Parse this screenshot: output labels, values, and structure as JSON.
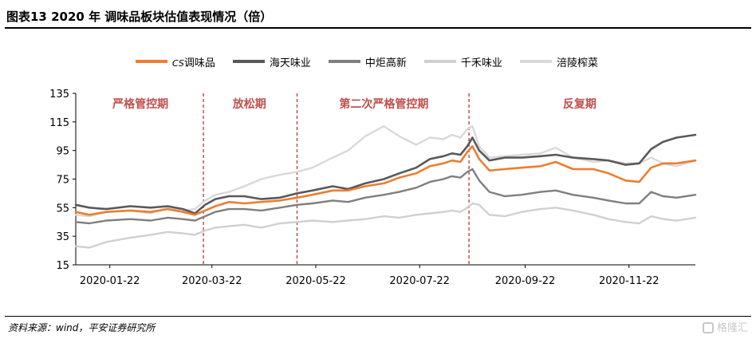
{
  "header": {
    "title": "图表13    2020 年 调味品板块估值表现情况（倍）"
  },
  "footer": {
    "source": "资料来源：wind，平安证券研究所",
    "watermark": "格隆汇"
  },
  "colors": {
    "axis": "#000000",
    "divider": "#b9483f",
    "period_label": "#c0504d"
  },
  "chart_data": {
    "type": "line",
    "title": "",
    "xlabel": "",
    "ylabel": "",
    "ylim": [
      15,
      135
    ],
    "yticks": [
      15,
      35,
      55,
      75,
      95,
      115,
      135
    ],
    "xlim": [
      "2020-01-02",
      "2020-12-31"
    ],
    "xticks": [
      "2020-01-22",
      "2020-03-22",
      "2020-05-22",
      "2020-07-22",
      "2020-09-22",
      "2020-11-22"
    ],
    "grid": false,
    "legend_position": "top-center",
    "dividers": [
      "2020-03-17",
      "2020-05-11",
      "2020-08-20"
    ],
    "periods": [
      {
        "label": "严格管控期",
        "x": "2020-02-09"
      },
      {
        "label": "放松期",
        "x": "2020-04-13"
      },
      {
        "label": "第二次严格管控期",
        "x": "2020-07-01"
      },
      {
        "label": "反复期",
        "x": "2020-10-24"
      }
    ],
    "series": [
      {
        "name": "调味品",
        "legend_prefix": "CS",
        "color": "#ed7d31",
        "width": 2.6,
        "x": [
          "2020-01-02",
          "2020-01-10",
          "2020-01-20",
          "2020-02-03",
          "2020-02-15",
          "2020-02-25",
          "2020-03-05",
          "2020-03-12",
          "2020-03-18",
          "2020-03-24",
          "2020-04-01",
          "2020-04-10",
          "2020-04-20",
          "2020-05-01",
          "2020-05-11",
          "2020-05-20",
          "2020-06-01",
          "2020-06-10",
          "2020-06-20",
          "2020-07-01",
          "2020-07-10",
          "2020-07-20",
          "2020-07-28",
          "2020-08-05",
          "2020-08-10",
          "2020-08-15",
          "2020-08-19",
          "2020-08-22",
          "2020-08-26",
          "2020-09-01",
          "2020-09-10",
          "2020-09-20",
          "2020-10-01",
          "2020-10-10",
          "2020-10-20",
          "2020-11-01",
          "2020-11-10",
          "2020-11-20",
          "2020-11-28",
          "2020-12-05",
          "2020-12-12",
          "2020-12-20",
          "2020-12-31"
        ],
        "y": [
          52,
          50,
          52,
          53,
          52,
          54,
          52,
          50,
          53,
          56,
          59,
          58,
          59,
          60,
          62,
          64,
          67,
          67,
          70,
          72,
          76,
          79,
          84,
          86,
          88,
          87,
          94,
          98,
          89,
          81,
          82,
          83,
          84,
          87,
          82,
          82,
          79,
          74,
          73,
          83,
          86,
          86,
          88
        ]
      },
      {
        "name": "海天味业",
        "color": "#595959",
        "width": 2.6,
        "x": [
          "2020-01-02",
          "2020-01-10",
          "2020-01-20",
          "2020-02-03",
          "2020-02-15",
          "2020-02-25",
          "2020-03-05",
          "2020-03-12",
          "2020-03-18",
          "2020-03-24",
          "2020-04-01",
          "2020-04-10",
          "2020-04-20",
          "2020-05-01",
          "2020-05-11",
          "2020-05-20",
          "2020-06-01",
          "2020-06-10",
          "2020-06-20",
          "2020-07-01",
          "2020-07-10",
          "2020-07-20",
          "2020-07-28",
          "2020-08-05",
          "2020-08-10",
          "2020-08-15",
          "2020-08-19",
          "2020-08-22",
          "2020-08-26",
          "2020-09-01",
          "2020-09-10",
          "2020-09-20",
          "2020-10-01",
          "2020-10-10",
          "2020-10-20",
          "2020-11-01",
          "2020-11-10",
          "2020-11-20",
          "2020-11-28",
          "2020-12-05",
          "2020-12-12",
          "2020-12-20",
          "2020-12-31"
        ],
        "y": [
          57,
          55,
          54,
          56,
          55,
          56,
          54,
          51,
          57,
          61,
          63,
          63,
          61,
          62,
          65,
          67,
          70,
          68,
          72,
          75,
          79,
          83,
          89,
          91,
          93,
          92,
          98,
          104,
          95,
          88,
          90,
          90,
          91,
          92,
          90,
          89,
          88,
          85,
          86,
          96,
          101,
          104,
          106
        ]
      },
      {
        "name": "中炬高新",
        "color": "#7f7f7f",
        "width": 2.4,
        "x": [
          "2020-01-02",
          "2020-01-10",
          "2020-01-20",
          "2020-02-03",
          "2020-02-15",
          "2020-02-25",
          "2020-03-05",
          "2020-03-12",
          "2020-03-18",
          "2020-03-24",
          "2020-04-01",
          "2020-04-10",
          "2020-04-20",
          "2020-05-01",
          "2020-05-11",
          "2020-05-20",
          "2020-06-01",
          "2020-06-10",
          "2020-06-20",
          "2020-07-01",
          "2020-07-10",
          "2020-07-20",
          "2020-07-28",
          "2020-08-05",
          "2020-08-10",
          "2020-08-15",
          "2020-08-19",
          "2020-08-22",
          "2020-08-26",
          "2020-09-01",
          "2020-09-10",
          "2020-09-20",
          "2020-10-01",
          "2020-10-10",
          "2020-10-20",
          "2020-11-01",
          "2020-11-10",
          "2020-11-20",
          "2020-11-28",
          "2020-12-05",
          "2020-12-12",
          "2020-12-20",
          "2020-12-31"
        ],
        "y": [
          45,
          44,
          46,
          47,
          46,
          48,
          47,
          46,
          49,
          52,
          54,
          54,
          53,
          55,
          57,
          58,
          60,
          59,
          62,
          64,
          66,
          69,
          73,
          75,
          77,
          76,
          80,
          82,
          74,
          66,
          63,
          64,
          66,
          67,
          64,
          62,
          60,
          58,
          58,
          66,
          63,
          62,
          64
        ]
      },
      {
        "name": "千禾味业",
        "color": "#d0d0d0",
        "width": 2.4,
        "x": [
          "2020-01-02",
          "2020-01-10",
          "2020-01-20",
          "2020-02-03",
          "2020-02-15",
          "2020-02-25",
          "2020-03-05",
          "2020-03-12",
          "2020-03-18",
          "2020-03-24",
          "2020-04-01",
          "2020-04-10",
          "2020-04-20",
          "2020-05-01",
          "2020-05-11",
          "2020-05-20",
          "2020-06-01",
          "2020-06-10",
          "2020-06-20",
          "2020-07-01",
          "2020-07-10",
          "2020-07-20",
          "2020-07-28",
          "2020-08-05",
          "2020-08-10",
          "2020-08-15",
          "2020-08-19",
          "2020-08-22",
          "2020-08-26",
          "2020-09-01",
          "2020-09-10",
          "2020-09-20",
          "2020-10-01",
          "2020-10-10",
          "2020-10-20",
          "2020-11-01",
          "2020-11-10",
          "2020-11-20",
          "2020-11-28",
          "2020-12-05",
          "2020-12-12",
          "2020-12-20",
          "2020-12-31"
        ],
        "y": [
          28,
          27,
          31,
          34,
          36,
          38,
          37,
          36,
          39,
          41,
          42,
          43,
          41,
          44,
          45,
          46,
          45,
          46,
          47,
          49,
          48,
          50,
          51,
          52,
          53,
          52,
          55,
          58,
          57,
          50,
          49,
          52,
          54,
          55,
          53,
          50,
          47,
          45,
          44,
          49,
          47,
          46,
          48
        ]
      },
      {
        "name": "涪陵榨菜",
        "color": "#d9d9d9",
        "width": 2.4,
        "x": [
          "2020-01-02",
          "2020-01-10",
          "2020-01-20",
          "2020-02-03",
          "2020-02-15",
          "2020-02-25",
          "2020-03-05",
          "2020-03-12",
          "2020-03-18",
          "2020-03-24",
          "2020-04-01",
          "2020-04-10",
          "2020-04-20",
          "2020-05-01",
          "2020-05-11",
          "2020-05-20",
          "2020-06-01",
          "2020-06-10",
          "2020-06-20",
          "2020-07-01",
          "2020-07-10",
          "2020-07-20",
          "2020-07-28",
          "2020-08-05",
          "2020-08-10",
          "2020-08-15",
          "2020-08-19",
          "2020-08-22",
          "2020-08-26",
          "2020-09-01",
          "2020-09-10",
          "2020-09-20",
          "2020-10-01",
          "2020-10-10",
          "2020-10-20",
          "2020-11-01",
          "2020-11-10",
          "2020-11-20",
          "2020-11-28",
          "2020-12-05",
          "2020-12-12",
          "2020-12-20",
          "2020-12-31"
        ],
        "y": [
          50,
          49,
          52,
          53,
          51,
          55,
          53,
          54,
          60,
          64,
          66,
          70,
          75,
          78,
          80,
          83,
          90,
          95,
          105,
          112,
          105,
          99,
          104,
          103,
          106,
          104,
          110,
          112,
          98,
          90,
          91,
          92,
          93,
          97,
          90,
          87,
          88,
          86,
          86,
          90,
          86,
          84,
          88
        ]
      }
    ]
  }
}
